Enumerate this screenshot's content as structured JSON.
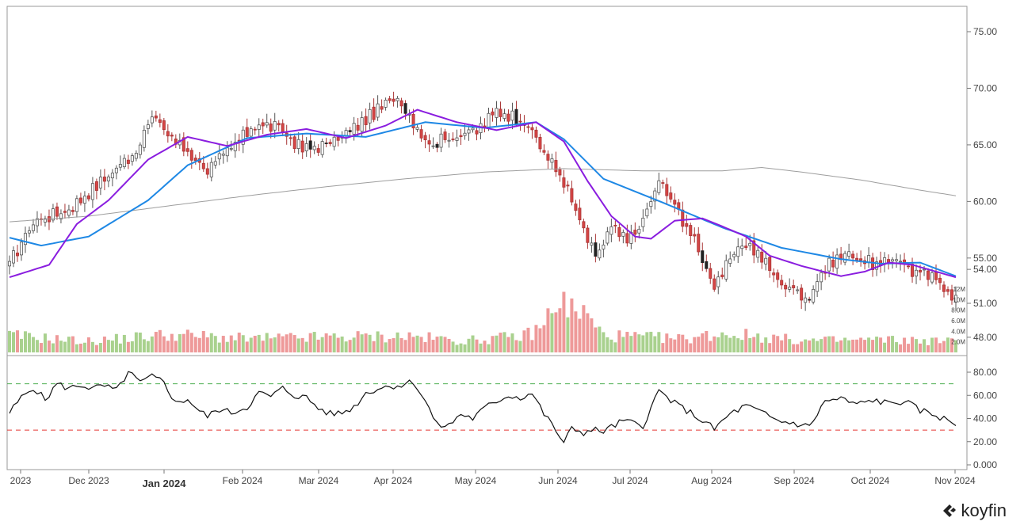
{
  "chart_data": [
    {
      "type": "candlestick",
      "y_ticks": [
        "75.00",
        "70.00",
        "65.00",
        "60.00",
        "55.00",
        "54.00",
        "51.00",
        "48.00"
      ],
      "y_tick_values": [
        75,
        70,
        65,
        60,
        55,
        54,
        51,
        48
      ],
      "volume_ticks": [
        "12M",
        "10M",
        "8.0M",
        "6.0M",
        "4.0M",
        "2.0M"
      ],
      "volume_tick_values": [
        12,
        10,
        8,
        6,
        4,
        2
      ],
      "x_ticks": [
        "2023",
        "Dec 2023",
        "Jan 2024",
        "Feb 2024",
        "Mar 2024",
        "Apr 2024",
        "May 2024",
        "Jun 2024",
        "Jul 2024",
        "Aug 2024",
        "Sep 2024",
        "Oct 2024",
        "Nov 2024"
      ],
      "bold_x_tick": "Jan 2024",
      "grid": false,
      "price_anchors": [
        [
          0,
          54.5
        ],
        [
          6,
          58.2
        ],
        [
          15,
          59.3
        ],
        [
          25,
          62.3
        ],
        [
          32,
          64.5
        ],
        [
          36,
          67.5
        ],
        [
          42,
          65.3
        ],
        [
          50,
          62.8
        ],
        [
          55,
          64.3
        ],
        [
          62,
          66.8
        ],
        [
          68,
          66.5
        ],
        [
          74,
          64.6
        ],
        [
          80,
          65.0
        ],
        [
          86,
          66.2
        ],
        [
          92,
          67.8
        ],
        [
          98,
          69.3
        ],
        [
          101,
          67.6
        ],
        [
          106,
          65.0
        ],
        [
          112,
          65.8
        ],
        [
          118,
          66.2
        ],
        [
          123,
          68.0
        ],
        [
          130,
          67.2
        ],
        [
          134,
          64.9
        ],
        [
          136,
          63.8
        ],
        [
          140,
          61.8
        ],
        [
          144,
          58.2
        ],
        [
          148,
          55.0
        ],
        [
          152,
          57.7
        ],
        [
          156,
          56.4
        ],
        [
          160,
          58.3
        ],
        [
          164,
          61.8
        ],
        [
          168,
          59.6
        ],
        [
          172,
          57.2
        ],
        [
          175,
          54.8
        ],
        [
          178,
          52.7
        ],
        [
          181,
          54.2
        ],
        [
          184,
          55.7
        ],
        [
          186,
          56.4
        ],
        [
          190,
          55.0
        ],
        [
          194,
          53.0
        ],
        [
          198,
          52.2
        ],
        [
          202,
          51.5
        ],
        [
          204,
          53.2
        ],
        [
          208,
          54.8
        ],
        [
          212,
          55.4
        ],
        [
          216,
          54.8
        ],
        [
          220,
          54.2
        ],
        [
          224,
          55.2
        ],
        [
          228,
          53.8
        ],
        [
          232,
          53.4
        ],
        [
          236,
          52.6
        ],
        [
          239,
          51.4
        ]
      ],
      "sma_20_anchors": [
        [
          0,
          56.8
        ],
        [
          8,
          56.1
        ],
        [
          20,
          56.9
        ],
        [
          35,
          60.1
        ],
        [
          45,
          63.2
        ],
        [
          60,
          65.6
        ],
        [
          75,
          66.0
        ],
        [
          90,
          65.7
        ],
        [
          105,
          67.0
        ],
        [
          120,
          66.5
        ],
        [
          133,
          67.0
        ],
        [
          140,
          65.5
        ],
        [
          150,
          62.0
        ],
        [
          165,
          59.9
        ],
        [
          180,
          57.7
        ],
        [
          195,
          55.9
        ],
        [
          210,
          54.9
        ],
        [
          220,
          54.5
        ],
        [
          230,
          54.6
        ],
        [
          239,
          53.4
        ]
      ],
      "sma_10_anchors": [
        [
          0,
          53.3
        ],
        [
          10,
          54.4
        ],
        [
          17,
          58.0
        ],
        [
          25,
          60.1
        ],
        [
          35,
          63.7
        ],
        [
          45,
          65.7
        ],
        [
          55,
          64.9
        ],
        [
          65,
          65.9
        ],
        [
          75,
          66.4
        ],
        [
          85,
          65.6
        ],
        [
          95,
          66.7
        ],
        [
          103,
          68.1
        ],
        [
          113,
          67.0
        ],
        [
          123,
          66.3
        ],
        [
          133,
          67.0
        ],
        [
          140,
          65.3
        ],
        [
          146,
          61.8
        ],
        [
          152,
          58.7
        ],
        [
          158,
          56.9
        ],
        [
          162,
          56.7
        ],
        [
          168,
          58.3
        ],
        [
          175,
          58.5
        ],
        [
          180,
          57.8
        ],
        [
          186,
          56.9
        ],
        [
          192,
          55.2
        ],
        [
          200,
          54.3
        ],
        [
          210,
          53.4
        ],
        [
          216,
          53.8
        ],
        [
          222,
          54.6
        ],
        [
          228,
          54.4
        ],
        [
          239,
          53.3
        ]
      ],
      "sma_200_anchors": [
        [
          0,
          58.2
        ],
        [
          20,
          58.7
        ],
        [
          40,
          59.6
        ],
        [
          60,
          60.5
        ],
        [
          80,
          61.3
        ],
        [
          100,
          62.0
        ],
        [
          120,
          62.6
        ],
        [
          140,
          62.9
        ],
        [
          160,
          62.7
        ],
        [
          180,
          62.7
        ],
        [
          190,
          63.0
        ],
        [
          200,
          62.6
        ],
        [
          215,
          61.9
        ],
        [
          230,
          61.0
        ],
        [
          239,
          60.5
        ]
      ],
      "volume_anchors": [
        [
          0,
          3.2
        ],
        [
          20,
          2.1
        ],
        [
          40,
          3.4
        ],
        [
          60,
          2.6
        ],
        [
          80,
          2.9
        ],
        [
          100,
          3.1
        ],
        [
          115,
          2.2
        ],
        [
          130,
          3.1
        ],
        [
          135,
          5.0
        ],
        [
          138,
          10.5
        ],
        [
          141,
          8.2
        ],
        [
          145,
          7.5
        ],
        [
          150,
          3.2
        ],
        [
          170,
          2.6
        ],
        [
          180,
          3.6
        ],
        [
          190,
          3.0
        ],
        [
          200,
          2.2
        ],
        [
          220,
          2.4
        ],
        [
          239,
          2.1
        ]
      ],
      "colors": {
        "up": "#ffffff",
        "up_border": "#555555",
        "down": "#d64545",
        "down_border": "#a83535",
        "down_other": "#222222",
        "vol_up": "#a9d18e",
        "vol_down": "#ee9999",
        "sma_10": "#8a1ddf",
        "sma_20": "#1e88e5",
        "sma_200": "#9e9e9e"
      }
    },
    {
      "type": "line",
      "y_ticks": [
        "80.00",
        "60.00",
        "40.00",
        "20.00",
        "0.000"
      ],
      "y_tick_values": [
        80,
        60,
        40,
        20,
        0
      ],
      "overbought": 70,
      "oversold": 30,
      "grid": false,
      "rsi_anchors": [
        [
          0,
          45
        ],
        [
          3,
          58
        ],
        [
          6,
          67
        ],
        [
          9,
          56
        ],
        [
          12,
          70
        ],
        [
          15,
          66
        ],
        [
          18,
          69
        ],
        [
          21,
          66
        ],
        [
          24,
          68
        ],
        [
          27,
          64
        ],
        [
          30,
          80
        ],
        [
          33,
          71
        ],
        [
          36,
          76
        ],
        [
          39,
          72
        ],
        [
          42,
          53
        ],
        [
          45,
          57
        ],
        [
          48,
          46
        ],
        [
          50,
          42
        ],
        [
          53,
          48
        ],
        [
          56,
          45
        ],
        [
          60,
          50
        ],
        [
          63,
          62
        ],
        [
          66,
          59
        ],
        [
          69,
          66
        ],
        [
          72,
          60
        ],
        [
          75,
          58
        ],
        [
          78,
          49
        ],
        [
          81,
          44
        ],
        [
          84,
          45
        ],
        [
          87,
          50
        ],
        [
          90,
          62
        ],
        [
          93,
          66
        ],
        [
          96,
          68
        ],
        [
          99,
          69
        ],
        [
          102,
          72
        ],
        [
          105,
          55
        ],
        [
          108,
          34
        ],
        [
          111,
          34
        ],
        [
          114,
          44
        ],
        [
          117,
          40
        ],
        [
          120,
          49
        ],
        [
          123,
          55
        ],
        [
          126,
          60
        ],
        [
          129,
          58
        ],
        [
          132,
          62
        ],
        [
          135,
          44
        ],
        [
          138,
          30
        ],
        [
          140,
          18
        ],
        [
          142,
          32
        ],
        [
          145,
          28
        ],
        [
          148,
          30
        ],
        [
          150,
          29
        ],
        [
          155,
          38
        ],
        [
          160,
          34
        ],
        [
          164,
          64
        ],
        [
          168,
          53
        ],
        [
          172,
          45
        ],
        [
          175,
          38
        ],
        [
          178,
          31
        ],
        [
          182,
          44
        ],
        [
          186,
          51
        ],
        [
          190,
          45
        ],
        [
          194,
          38
        ],
        [
          198,
          36
        ],
        [
          202,
          33
        ],
        [
          206,
          55
        ],
        [
          210,
          57
        ],
        [
          214,
          52
        ],
        [
          218,
          56
        ],
        [
          222,
          53
        ],
        [
          226,
          55
        ],
        [
          230,
          47
        ],
        [
          234,
          43
        ],
        [
          237,
          38
        ],
        [
          239,
          35
        ]
      ],
      "colors": {
        "line": "#111111",
        "overbought": "#4caf50",
        "oversold": "#e53935"
      }
    }
  ],
  "brand": {
    "name": "koyfin"
  }
}
